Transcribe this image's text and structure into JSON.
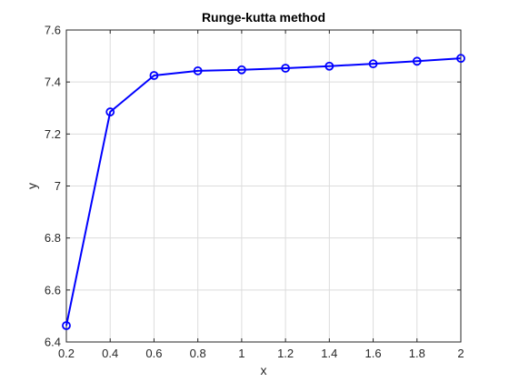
{
  "chart_data": {
    "type": "line",
    "title": "Runge-kutta method",
    "xlabel": "x",
    "ylabel": "y",
    "xlim": [
      0.2,
      2
    ],
    "ylim": [
      6.4,
      7.6
    ],
    "xticks": [
      "0.2",
      "0.4",
      "0.6",
      "0.8",
      "1",
      "1.2",
      "1.4",
      "1.6",
      "1.8",
      "2"
    ],
    "yticks": [
      "6.4",
      "6.6",
      "6.8",
      "7",
      "7.2",
      "7.4",
      "7.6"
    ],
    "grid": true,
    "series": [
      {
        "color": "#0000ff",
        "marker": "circle",
        "x": [
          0.2,
          0.4,
          0.6,
          0.8,
          1.0,
          1.2,
          1.4,
          1.6,
          1.8,
          2.0
        ],
        "y": [
          6.463,
          7.285,
          7.425,
          7.443,
          7.447,
          7.453,
          7.461,
          7.47,
          7.48,
          7.491
        ]
      }
    ]
  }
}
